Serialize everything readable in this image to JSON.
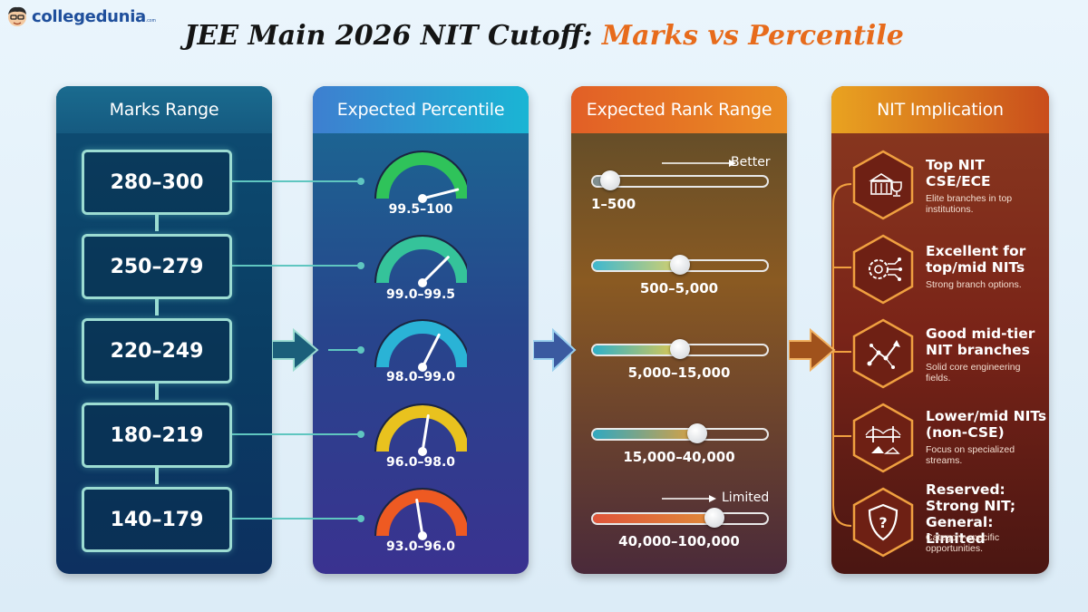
{
  "brand": {
    "name": "collegedunia",
    "suffix": ".com"
  },
  "title": {
    "main": "JEE Main 2026 NIT Cutoff:",
    "highlight": "Marks vs Percentile"
  },
  "columns": {
    "marks": "Marks Range",
    "percentile": "Expected Percentile",
    "rank": "Expected Rank Range",
    "implication": "NIT Implication"
  },
  "rows": [
    {
      "marks": "280–300",
      "percentile": "99.5–100",
      "rank": "1–500",
      "gauge_level": 0.92,
      "rank_position": 0.1,
      "impl_title": [
        "Top NIT",
        "CSE/ECE"
      ],
      "impl_sub": [
        "Elite branches in top",
        "institutions."
      ],
      "icon": "university-trophy-icon"
    },
    {
      "marks": "250–279",
      "percentile": "99.0–99.5",
      "rank": "500–5,000",
      "gauge_level": 0.75,
      "rank_position": 0.5,
      "impl_title": [
        "Excellent for",
        "top/mid NITs"
      ],
      "impl_sub": [
        "Strong branch options."
      ],
      "icon": "circuit-gear-icon"
    },
    {
      "marks": "220–249",
      "percentile": "98.0–99.0",
      "rank": "5,000–15,000",
      "gauge_level": 0.65,
      "rank_position": 0.5,
      "impl_title": [
        "Good mid-tier",
        "NIT branches"
      ],
      "impl_sub": [
        "Solid core engineering",
        "fields."
      ],
      "icon": "network-growth-icon"
    },
    {
      "marks": "180–219",
      "percentile": "96.0–98.0",
      "rank": "15,000–40,000",
      "gauge_level": 0.55,
      "rank_position": 0.6,
      "impl_title": [
        "Lower/mid NITs",
        "(non-CSE)"
      ],
      "impl_sub": [
        "Focus on specialized",
        "streams."
      ],
      "icon": "bridge-icon"
    },
    {
      "marks": "140–179",
      "percentile": "93.0–96.0",
      "rank": "40,000–100,000",
      "gauge_level": 0.45,
      "rank_position": 0.7,
      "impl_title": [
        "Reserved:",
        "Strong NIT;",
        "General: Limited"
      ],
      "impl_sub": [
        "Category-specific",
        "opportunities."
      ],
      "icon": "shield-question-icon"
    }
  ],
  "rank_indicators": {
    "top": "Better",
    "bottom": "Limited"
  },
  "colors": {
    "accent": "#e76b1c",
    "gauges": [
      "#2fc35a",
      "#35c39a",
      "#2ab3d6",
      "#e9c21e",
      "#ee5a22"
    ],
    "hex_border": "#f0a040"
  }
}
